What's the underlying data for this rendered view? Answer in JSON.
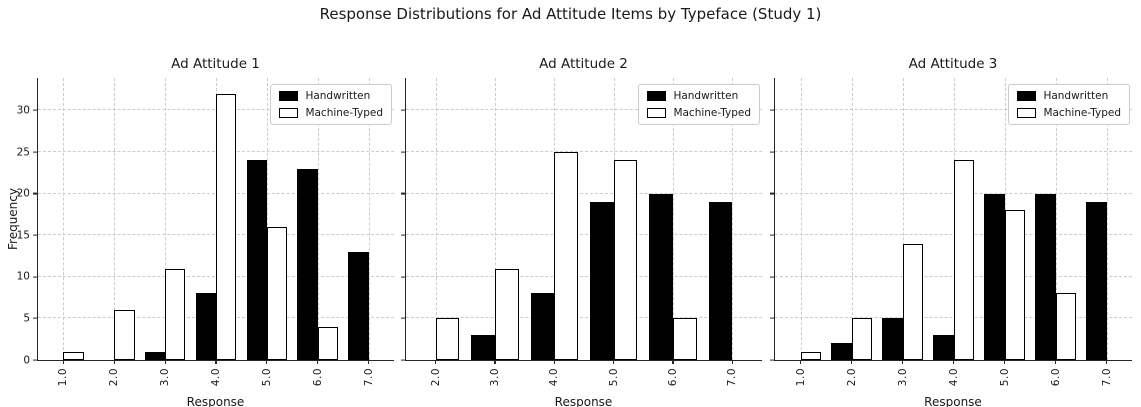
{
  "figure": {
    "title": "Response Distributions for Ad Attitude Items by Typeface (Study 1)",
    "ylabel": "Frequency",
    "xlabel": "Response"
  },
  "colors": {
    "handwritten_fill": "#000000",
    "machine_typed_fill": "#ffffff",
    "bar_edge": "#000000",
    "grid": "#cccccc",
    "spine": "#262626",
    "text": "#1a1a1a"
  },
  "axis": {
    "yticks": [
      0,
      5,
      10,
      15,
      20,
      25,
      30
    ],
    "ymax": 33.9
  },
  "legend": {
    "handwritten": "Handwritten",
    "machine_typed": "Machine-Typed",
    "position": "upper right"
  },
  "chart_data": [
    {
      "type": "bar",
      "title": "Ad Attitude 1",
      "xlabel": "Response",
      "ylabel": "Frequency",
      "categories": [
        "1.0",
        "2.0",
        "3.0",
        "4.0",
        "5.0",
        "6.0",
        "7.0"
      ],
      "series": [
        {
          "name": "Handwritten",
          "values": [
            0,
            0,
            1,
            8,
            24,
            23,
            13
          ]
        },
        {
          "name": "Machine-Typed",
          "values": [
            1,
            6,
            11,
            32,
            16,
            4,
            0
          ]
        }
      ],
      "ylim": [
        0,
        33.9
      ],
      "grid": true,
      "legend_position": "upper right"
    },
    {
      "type": "bar",
      "title": "Ad Attitude 2",
      "xlabel": "Response",
      "ylabel": "Frequency",
      "categories": [
        "2.0",
        "3.0",
        "4.0",
        "5.0",
        "6.0",
        "7.0"
      ],
      "series": [
        {
          "name": "Handwritten",
          "values": [
            0,
            3,
            8,
            19,
            20,
            19
          ]
        },
        {
          "name": "Machine-Typed",
          "values": [
            5,
            11,
            25,
            24,
            5,
            0
          ]
        }
      ],
      "ylim": [
        0,
        33.9
      ],
      "grid": true,
      "legend_position": "upper right"
    },
    {
      "type": "bar",
      "title": "Ad Attitude 3",
      "xlabel": "Response",
      "ylabel": "Frequency",
      "categories": [
        "1.0",
        "2.0",
        "3.0",
        "4.0",
        "5.0",
        "6.0",
        "7.0"
      ],
      "series": [
        {
          "name": "Handwritten",
          "values": [
            0,
            2,
            5,
            3,
            20,
            20,
            19
          ]
        },
        {
          "name": "Machine-Typed",
          "values": [
            1,
            5,
            14,
            24,
            18,
            8,
            0
          ]
        }
      ],
      "ylim": [
        0,
        33.9
      ],
      "grid": true,
      "legend_position": "upper right"
    }
  ]
}
